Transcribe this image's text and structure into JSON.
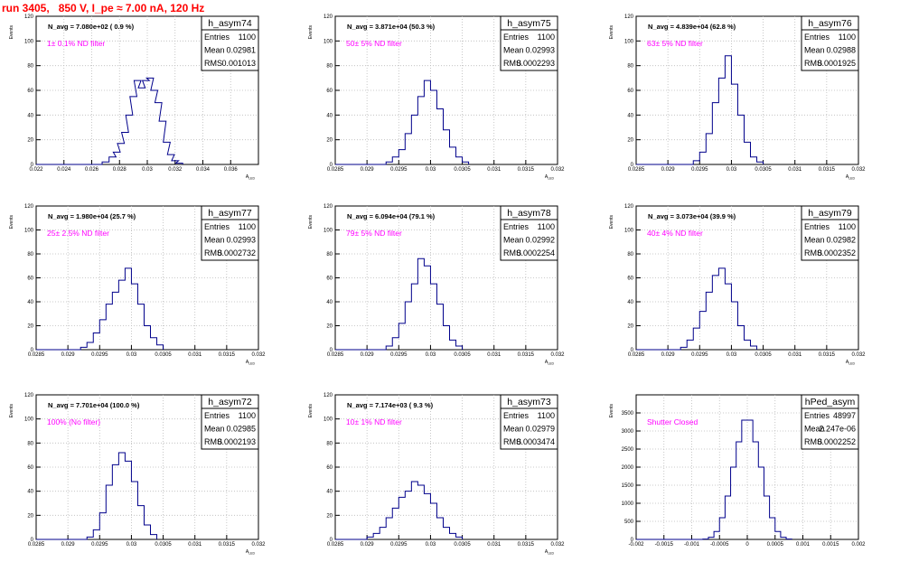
{
  "run_title": "run 3405,   850 V, I_pe ≈ 7.00 nA, 120 Hz",
  "stats_labels": {
    "entries": "Entries",
    "mean": "Mean",
    "rms": "RMS"
  },
  "colors": {
    "title": "#ff0000",
    "annotation": "#ff00ff",
    "histogram": "#00008b",
    "frame": "#000000",
    "grid": "#bbbbbb"
  },
  "chart_data": [
    {
      "type": "bar",
      "name": "h_asym74",
      "navg": "N_avg = 7.080e+02 ( 0.9 %)",
      "filter": "1± 0.1% ND filter",
      "entries": "1100",
      "mean": "0.02981",
      "rms": "0.001013",
      "xlim": [
        0.022,
        0.038
      ],
      "ylim": [
        0,
        120
      ],
      "xticks": [
        0.022,
        0.024,
        0.026,
        0.028,
        0.03,
        0.032,
        0.034,
        0.036,
        0.038
      ],
      "xticklabels": [
        "0.022",
        "0.024",
        "0.026",
        "0.028",
        "0.03",
        "0.032",
        "0.034",
        "0.036",
        ""
      ],
      "yticks": [
        0,
        20,
        40,
        60,
        80,
        100,
        120
      ],
      "ylabel": "Events",
      "xlabel": "A_LED",
      "bins": [
        [
          0.027,
          2
        ],
        [
          0.0275,
          6
        ],
        [
          0.0278,
          10
        ],
        [
          0.0281,
          17
        ],
        [
          0.0284,
          26
        ],
        [
          0.0287,
          40
        ],
        [
          0.029,
          55
        ],
        [
          0.0293,
          68
        ],
        [
          0.0296,
          62
        ],
        [
          0.0299,
          68
        ],
        [
          0.0302,
          70
        ],
        [
          0.0305,
          60
        ],
        [
          0.0308,
          50
        ],
        [
          0.0311,
          35
        ],
        [
          0.0314,
          18
        ],
        [
          0.0317,
          8
        ],
        [
          0.032,
          3
        ],
        [
          0.0323,
          1
        ]
      ]
    },
    {
      "type": "bar",
      "name": "h_asym75",
      "navg": "N_avg = 3.871e+04 (50.3 %)",
      "filter": "50± 5% ND filter",
      "entries": "1100",
      "mean": "0.02993",
      "rms": "0.0002293",
      "xlim": [
        0.0285,
        0.032
      ],
      "ylim": [
        0,
        120
      ],
      "xticks": [
        0.0285,
        0.029,
        0.0295,
        0.03,
        0.0305,
        0.031,
        0.0315,
        0.032
      ],
      "xticklabels": [
        "0.0285",
        "0.029",
        "0.0295",
        "0.03",
        "0.0305",
        "0.031",
        "0.0315",
        "0.032"
      ],
      "yticks": [
        0,
        20,
        40,
        60,
        80,
        100,
        120
      ],
      "ylabel": "Events",
      "xlabel": "A_LED",
      "bins": [
        [
          0.02935,
          2
        ],
        [
          0.02945,
          6
        ],
        [
          0.02955,
          12
        ],
        [
          0.02965,
          25
        ],
        [
          0.02975,
          40
        ],
        [
          0.02985,
          55
        ],
        [
          0.02995,
          68
        ],
        [
          0.03005,
          60
        ],
        [
          0.03015,
          45
        ],
        [
          0.03025,
          28
        ],
        [
          0.03035,
          14
        ],
        [
          0.03045,
          6
        ],
        [
          0.03055,
          2
        ]
      ]
    },
    {
      "type": "bar",
      "name": "h_asym76",
      "navg": "N_avg = 4.839e+04 (62.8 %)",
      "filter": "63± 5% ND filter",
      "entries": "1100",
      "mean": "0.02988",
      "rms": "0.0001925",
      "xlim": [
        0.0285,
        0.032
      ],
      "ylim": [
        0,
        120
      ],
      "xticks": [
        0.0285,
        0.029,
        0.0295,
        0.03,
        0.0305,
        0.031,
        0.0315,
        0.032
      ],
      "xticklabels": [
        "0.0285",
        "0.029",
        "0.0295",
        "0.03",
        "0.0305",
        "0.031",
        "0.0315",
        "0.032"
      ],
      "yticks": [
        0,
        20,
        40,
        60,
        80,
        100,
        120
      ],
      "ylabel": "Events",
      "xlabel": "A_LED",
      "bins": [
        [
          0.02945,
          3
        ],
        [
          0.02955,
          10
        ],
        [
          0.02965,
          25
        ],
        [
          0.02975,
          50
        ],
        [
          0.02985,
          70
        ],
        [
          0.02995,
          88
        ],
        [
          0.03005,
          65
        ],
        [
          0.03015,
          40
        ],
        [
          0.03025,
          18
        ],
        [
          0.03035,
          6
        ],
        [
          0.03045,
          2
        ]
      ]
    },
    {
      "type": "bar",
      "name": "h_asym77",
      "navg": "N_avg = 1.980e+04 (25.7 %)",
      "filter": "25± 2.5% ND filter",
      "entries": "1100",
      "mean": "0.02993",
      "rms": "0.0002732",
      "xlim": [
        0.0285,
        0.032
      ],
      "ylim": [
        0,
        120
      ],
      "xticks": [
        0.0285,
        0.029,
        0.0295,
        0.03,
        0.0305,
        0.031,
        0.0315,
        0.032
      ],
      "xticklabels": [
        "0.0285",
        "0.029",
        "0.0295",
        "0.03",
        "0.0305",
        "0.031",
        "0.0315",
        "0.032"
      ],
      "yticks": [
        0,
        20,
        40,
        60,
        80,
        100,
        120
      ],
      "ylabel": "Events",
      "xlabel": "A_LED",
      "bins": [
        [
          0.02925,
          2
        ],
        [
          0.02935,
          6
        ],
        [
          0.02945,
          14
        ],
        [
          0.02955,
          25
        ],
        [
          0.02965,
          38
        ],
        [
          0.02975,
          48
        ],
        [
          0.02985,
          58
        ],
        [
          0.02995,
          68
        ],
        [
          0.03005,
          55
        ],
        [
          0.03015,
          38
        ],
        [
          0.03025,
          20
        ],
        [
          0.03035,
          10
        ],
        [
          0.03045,
          4
        ]
      ]
    },
    {
      "type": "bar",
      "name": "h_asym78",
      "navg": "N_avg = 6.094e+04 (79.1 %)",
      "filter": "79± 5% ND filter",
      "entries": "1100",
      "mean": "0.02992",
      "rms": "0.0002254",
      "xlim": [
        0.0285,
        0.032
      ],
      "ylim": [
        0,
        120
      ],
      "xticks": [
        0.0285,
        0.029,
        0.0295,
        0.03,
        0.0305,
        0.031,
        0.0315,
        0.032
      ],
      "xticklabels": [
        "0.0285",
        "0.029",
        "0.0295",
        "0.03",
        "0.0305",
        "0.031",
        "0.0315",
        "0.032"
      ],
      "yticks": [
        0,
        20,
        40,
        60,
        80,
        100,
        120
      ],
      "ylabel": "Events",
      "xlabel": "A_LED",
      "bins": [
        [
          0.02935,
          3
        ],
        [
          0.02945,
          10
        ],
        [
          0.02955,
          22
        ],
        [
          0.02965,
          40
        ],
        [
          0.02975,
          55
        ],
        [
          0.02985,
          76
        ],
        [
          0.02995,
          70
        ],
        [
          0.03005,
          55
        ],
        [
          0.03015,
          38
        ],
        [
          0.03025,
          20
        ],
        [
          0.03035,
          8
        ],
        [
          0.03045,
          3
        ]
      ]
    },
    {
      "type": "bar",
      "name": "h_asym79",
      "navg": "N_avg = 3.073e+04 (39.9 %)",
      "filter": "40± 4% ND filter",
      "entries": "1100",
      "mean": "0.02982",
      "rms": "0.0002352",
      "xlim": [
        0.0285,
        0.032
      ],
      "ylim": [
        0,
        120
      ],
      "xticks": [
        0.0285,
        0.029,
        0.0295,
        0.03,
        0.0305,
        0.031,
        0.0315,
        0.032
      ],
      "xticklabels": [
        "0.0285",
        "0.029",
        "0.0295",
        "0.03",
        "0.0305",
        "0.031",
        "0.0315",
        "0.032"
      ],
      "yticks": [
        0,
        20,
        40,
        60,
        80,
        100,
        120
      ],
      "ylabel": "Events",
      "xlabel": "A_LED",
      "bins": [
        [
          0.02925,
          2
        ],
        [
          0.02935,
          8
        ],
        [
          0.02945,
          18
        ],
        [
          0.02955,
          32
        ],
        [
          0.02965,
          48
        ],
        [
          0.02975,
          62
        ],
        [
          0.02985,
          68
        ],
        [
          0.02995,
          55
        ],
        [
          0.03005,
          40
        ],
        [
          0.03015,
          20
        ],
        [
          0.03025,
          8
        ],
        [
          0.03035,
          3
        ]
      ]
    },
    {
      "type": "bar",
      "name": "h_asym72",
      "navg": "N_avg = 7.701e+04 (100.0 %)",
      "filter": "100% (No filter)",
      "entries": "1100",
      "mean": "0.02985",
      "rms": "0.0002193",
      "xlim": [
        0.0285,
        0.032
      ],
      "ylim": [
        0,
        120
      ],
      "xticks": [
        0.0285,
        0.029,
        0.0295,
        0.03,
        0.0305,
        0.031,
        0.0315,
        0.032
      ],
      "xticklabels": [
        "0.0285",
        "0.029",
        "0.0295",
        "0.03",
        "0.0305",
        "0.031",
        "0.0315",
        "0.032"
      ],
      "yticks": [
        0,
        20,
        40,
        60,
        80,
        100,
        120
      ],
      "ylabel": "Events",
      "xlabel": "A_LED",
      "bins": [
        [
          0.02935,
          2
        ],
        [
          0.02945,
          8
        ],
        [
          0.02955,
          22
        ],
        [
          0.02965,
          45
        ],
        [
          0.02975,
          62
        ],
        [
          0.02985,
          72
        ],
        [
          0.02995,
          65
        ],
        [
          0.03005,
          48
        ],
        [
          0.03015,
          28
        ],
        [
          0.03025,
          12
        ],
        [
          0.03035,
          4
        ]
      ]
    },
    {
      "type": "bar",
      "name": "h_asym73",
      "navg": "N_avg = 7.174e+03 ( 9.3 %)",
      "filter": "10± 1% ND filter",
      "entries": "1100",
      "mean": "0.02979",
      "rms": "0.0003474",
      "xlim": [
        0.0285,
        0.032
      ],
      "ylim": [
        0,
        120
      ],
      "xticks": [
        0.0285,
        0.029,
        0.0295,
        0.03,
        0.0305,
        0.031,
        0.0315,
        0.032
      ],
      "xticklabels": [
        "0.0285",
        "0.029",
        "0.0295",
        "0.03",
        "0.0305",
        "0.031",
        "0.0315",
        "0.032"
      ],
      "yticks": [
        0,
        20,
        40,
        60,
        80,
        100,
        120
      ],
      "ylabel": "Events",
      "xlabel": "A_LED",
      "bins": [
        [
          0.02905,
          2
        ],
        [
          0.02915,
          5
        ],
        [
          0.02925,
          10
        ],
        [
          0.02935,
          18
        ],
        [
          0.02945,
          26
        ],
        [
          0.02955,
          35
        ],
        [
          0.02965,
          40
        ],
        [
          0.02975,
          48
        ],
        [
          0.02985,
          45
        ],
        [
          0.02995,
          38
        ],
        [
          0.03005,
          30
        ],
        [
          0.03015,
          18
        ],
        [
          0.03025,
          10
        ],
        [
          0.03035,
          5
        ],
        [
          0.03045,
          2
        ]
      ]
    },
    {
      "type": "bar",
      "name": "hPed_asym",
      "navg": "",
      "filter": "Shutter Closed",
      "entries": "48997",
      "mean": "2.247e-06",
      "rms": "0.0002252",
      "xlim": [
        -0.002,
        0.002
      ],
      "ylim": [
        0,
        4000
      ],
      "xticks": [
        -0.002,
        -0.0015,
        -0.001,
        -0.0005,
        0,
        0.0005,
        0.001,
        0.0015,
        0.002
      ],
      "xticklabels": [
        "-0.002",
        "-0.0015",
        "-0.001",
        "-0.0005",
        "0",
        "0.0005",
        "0.001",
        "0.0015",
        "0.002"
      ],
      "yticks": [
        0,
        500,
        1000,
        1500,
        2000,
        2500,
        3000,
        3500
      ],
      "ylabel": "Events",
      "xlabel": "",
      "bins": [
        [
          -0.00075,
          10
        ],
        [
          -0.00065,
          60
        ],
        [
          -0.00055,
          220
        ],
        [
          -0.00045,
          600
        ],
        [
          -0.00035,
          1200
        ],
        [
          -0.00025,
          2000
        ],
        [
          -0.00015,
          2700
        ],
        [
          -5e-05,
          3300
        ],
        [
          5e-05,
          3300
        ],
        [
          0.00015,
          2700
        ],
        [
          0.00025,
          2000
        ],
        [
          0.00035,
          1200
        ],
        [
          0.00045,
          600
        ],
        [
          0.00055,
          220
        ],
        [
          0.00065,
          60
        ],
        [
          0.00075,
          10
        ]
      ]
    }
  ]
}
